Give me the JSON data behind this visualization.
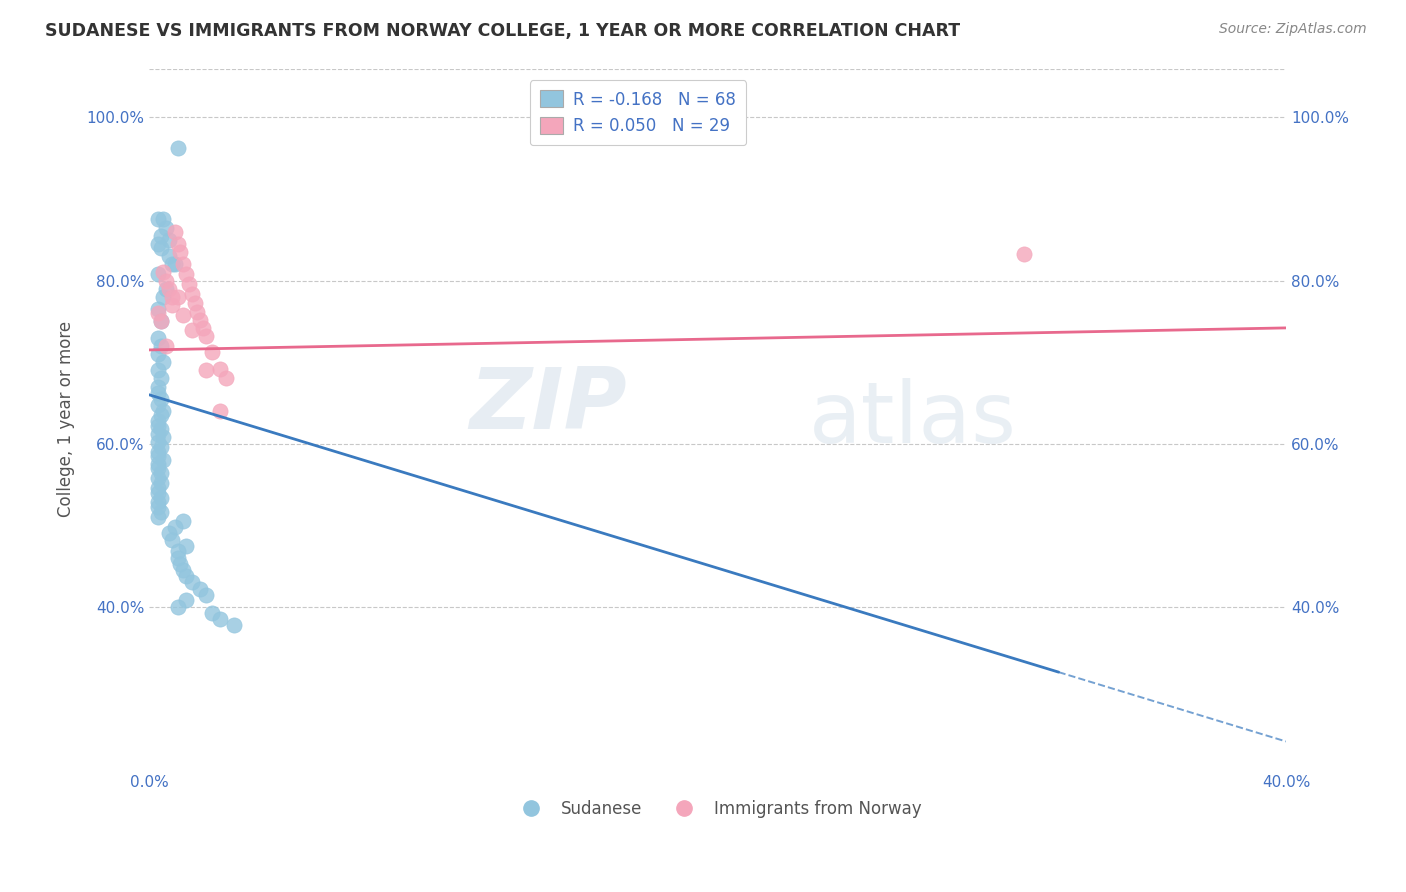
{
  "title": "SUDANESE VS IMMIGRANTS FROM NORWAY COLLEGE, 1 YEAR OR MORE CORRELATION CHART",
  "source_text": "Source: ZipAtlas.com",
  "ylabel": "College, 1 year or more",
  "xlim": [
    0.0,
    0.4
  ],
  "ylim": [
    0.2,
    1.06
  ],
  "yticks": [
    0.4,
    0.6,
    0.8,
    1.0
  ],
  "ytick_labels": [
    "40.0%",
    "60.0%",
    "80.0%",
    "100.0%"
  ],
  "xtick_labels_left": "0.0%",
  "xtick_labels_right": "40.0%",
  "blue_R": -0.168,
  "blue_N": 68,
  "pink_R": 0.05,
  "pink_N": 29,
  "blue_color": "#92c5de",
  "pink_color": "#f4a6bb",
  "blue_line_color": "#3a7abf",
  "pink_line_color": "#e8698d",
  "legend_label_blue": "Sudanese",
  "legend_label_pink": "Immigrants from Norway",
  "blue_scatter_x": [
    0.01,
    0.003,
    0.005,
    0.006,
    0.004,
    0.007,
    0.003,
    0.004,
    0.007,
    0.009,
    0.008,
    0.003,
    0.006,
    0.005,
    0.003,
    0.004,
    0.003,
    0.004,
    0.003,
    0.005,
    0.003,
    0.004,
    0.003,
    0.003,
    0.004,
    0.003,
    0.005,
    0.004,
    0.003,
    0.003,
    0.004,
    0.003,
    0.005,
    0.003,
    0.004,
    0.003,
    0.003,
    0.005,
    0.003,
    0.003,
    0.004,
    0.003,
    0.004,
    0.003,
    0.003,
    0.004,
    0.003,
    0.003,
    0.004,
    0.003,
    0.012,
    0.009,
    0.007,
    0.008,
    0.013,
    0.01,
    0.01,
    0.011,
    0.012,
    0.013,
    0.015,
    0.018,
    0.02,
    0.013,
    0.01,
    0.022,
    0.025,
    0.03
  ],
  "blue_scatter_y": [
    0.962,
    0.875,
    0.875,
    0.865,
    0.855,
    0.85,
    0.845,
    0.84,
    0.83,
    0.82,
    0.82,
    0.808,
    0.79,
    0.78,
    0.765,
    0.75,
    0.73,
    0.72,
    0.71,
    0.7,
    0.69,
    0.68,
    0.67,
    0.662,
    0.655,
    0.648,
    0.64,
    0.635,
    0.628,
    0.622,
    0.618,
    0.612,
    0.608,
    0.602,
    0.596,
    0.59,
    0.585,
    0.58,
    0.575,
    0.57,
    0.564,
    0.558,
    0.552,
    0.546,
    0.54,
    0.534,
    0.528,
    0.522,
    0.516,
    0.51,
    0.505,
    0.498,
    0.49,
    0.482,
    0.475,
    0.468,
    0.46,
    0.452,
    0.445,
    0.438,
    0.43,
    0.422,
    0.415,
    0.408,
    0.4,
    0.392,
    0.385,
    0.378
  ],
  "pink_scatter_x": [
    0.003,
    0.004,
    0.005,
    0.006,
    0.007,
    0.008,
    0.009,
    0.01,
    0.011,
    0.012,
    0.013,
    0.014,
    0.015,
    0.016,
    0.017,
    0.018,
    0.019,
    0.02,
    0.022,
    0.025,
    0.027,
    0.006,
    0.008,
    0.01,
    0.012,
    0.015,
    0.02,
    0.025,
    0.308
  ],
  "pink_scatter_y": [
    0.76,
    0.75,
    0.81,
    0.8,
    0.79,
    0.78,
    0.86,
    0.845,
    0.835,
    0.82,
    0.808,
    0.796,
    0.784,
    0.772,
    0.762,
    0.752,
    0.742,
    0.732,
    0.712,
    0.692,
    0.68,
    0.72,
    0.77,
    0.78,
    0.758,
    0.74,
    0.69,
    0.64,
    0.832
  ],
  "blue_line_x0": 0.0,
  "blue_line_x_solid_end": 0.32,
  "blue_line_x1": 0.4,
  "blue_line_y0": 0.66,
  "blue_line_y1": 0.235,
  "pink_line_x0": 0.0,
  "pink_line_x1": 0.4,
  "pink_line_y0": 0.715,
  "pink_line_y1": 0.742,
  "watermark_zip": "ZIP",
  "watermark_atlas": "atlas",
  "grid_color": "#c8c8c8",
  "background_color": "#ffffff",
  "title_color": "#333333",
  "axis_label_color": "#555555",
  "tick_color": "#4472c4",
  "legend_r_color": "#4472c4"
}
